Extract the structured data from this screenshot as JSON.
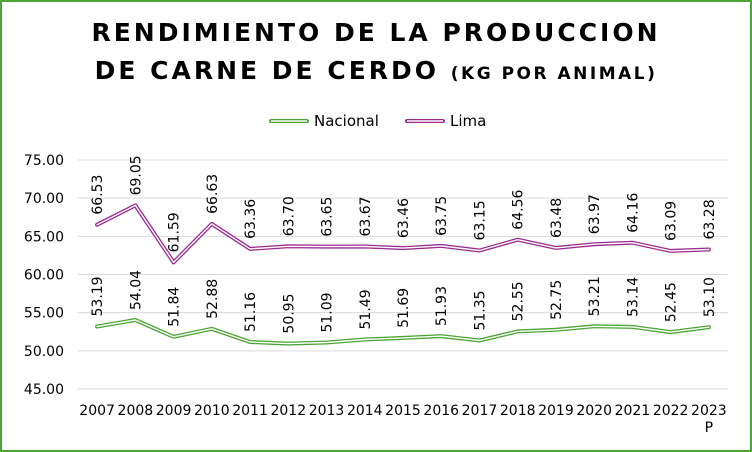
{
  "title": {
    "line1": "RENDIMIENTO DE LA PRODUCCION",
    "line2": "DE CARNE DE CERDO",
    "unit": "(KG POR ANIMAL)"
  },
  "chart_data": {
    "type": "line",
    "title": "RENDIMIENTO DE LA PRODUCCION DE CARNE DE CERDO (KG POR ANIMAL)",
    "categories": [
      "2007",
      "2008",
      "2009",
      "2010",
      "2011",
      "2012",
      "2013",
      "2014",
      "2015",
      "2016",
      "2017",
      "2018",
      "2019",
      "2020",
      "2021",
      "2022",
      "2023 P"
    ],
    "category_labels": [
      [
        "2007"
      ],
      [
        "2008"
      ],
      [
        "2009"
      ],
      [
        "2010"
      ],
      [
        "2011"
      ],
      [
        "2012"
      ],
      [
        "2013"
      ],
      [
        "2014"
      ],
      [
        "2015"
      ],
      [
        "2016"
      ],
      [
        "2017"
      ],
      [
        "2018"
      ],
      [
        "2019"
      ],
      [
        "2020"
      ],
      [
        "2021"
      ],
      [
        "2022"
      ],
      [
        "2023",
        "P"
      ]
    ],
    "series": [
      {
        "name": "Nacional",
        "color": "#4aa532",
        "values": [
          53.19,
          54.04,
          51.84,
          52.88,
          51.16,
          50.95,
          51.09,
          51.49,
          51.69,
          51.93,
          51.35,
          52.55,
          52.75,
          53.21,
          53.14,
          52.45,
          53.1
        ],
        "labels": [
          "53.19",
          "54.04",
          "51.84",
          "52.88",
          "51.16",
          "50.95",
          "51.09",
          "51.49",
          "51.69",
          "51.93",
          "51.35",
          "52.55",
          "52.75",
          "53.21",
          "53.14",
          "52.45",
          "53.10"
        ]
      },
      {
        "name": "Lima",
        "color": "#9c2a92",
        "values": [
          66.53,
          69.05,
          61.59,
          66.63,
          63.36,
          63.7,
          63.65,
          63.67,
          63.46,
          63.75,
          63.15,
          64.56,
          63.48,
          63.97,
          64.16,
          63.09,
          63.28
        ],
        "labels": [
          "66.53",
          "69.05",
          "61.59",
          "66.63",
          "63.36",
          "63.70",
          "63.65",
          "63.67",
          "63.46",
          "63.75",
          "63.15",
          "64.56",
          "63.48",
          "63.97",
          "64.16",
          "63.09",
          "63.28"
        ]
      }
    ],
    "ylim": [
      45,
      75
    ],
    "yticks": [
      "45.00",
      "50.00",
      "55.00",
      "60.00",
      "65.00",
      "70.00",
      "75.00"
    ],
    "ytick_values": [
      45,
      50,
      55,
      60,
      65,
      70,
      75
    ],
    "grid": true,
    "legend_position": "top",
    "xlabel": "",
    "ylabel": ""
  }
}
